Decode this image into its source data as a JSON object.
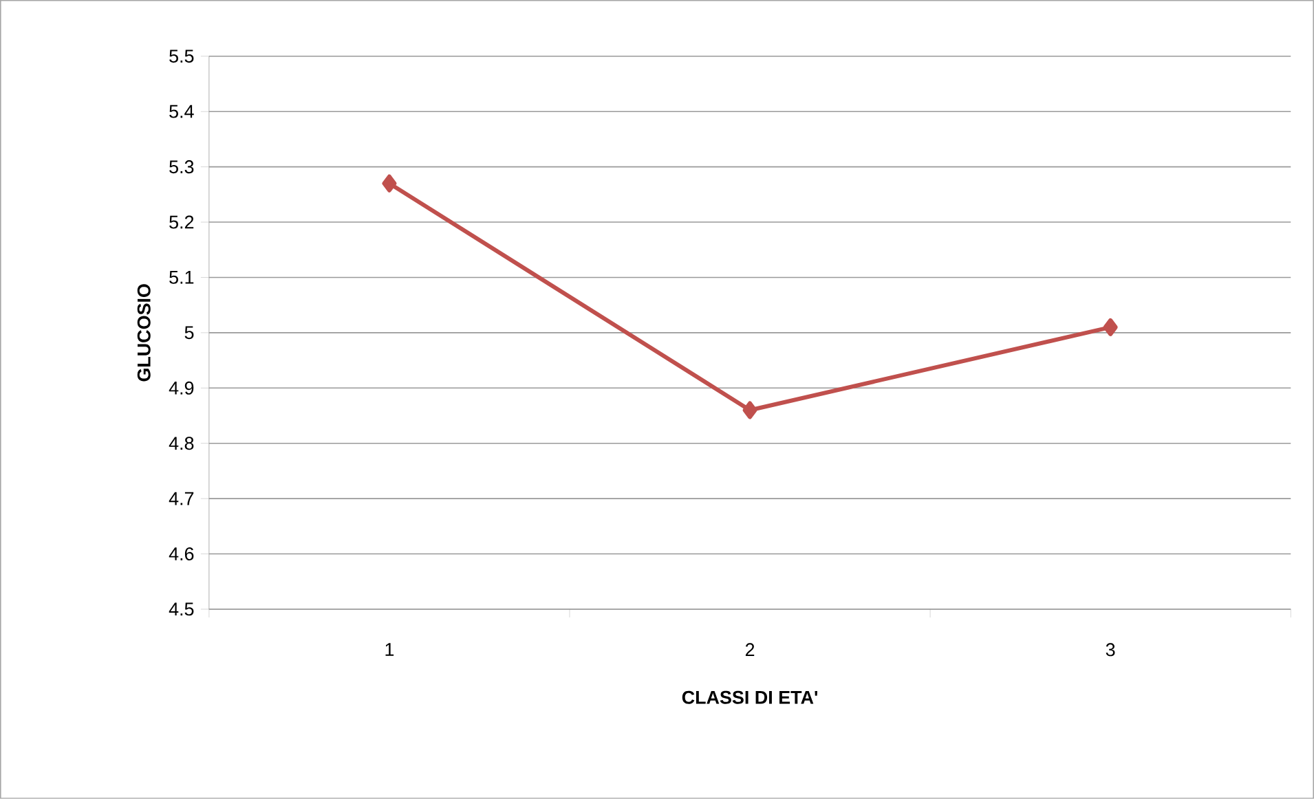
{
  "chart_data": {
    "type": "line",
    "xlabel": "CLASSI DI ETA'",
    "ylabel": "GLUCOSIO",
    "categories": [
      "1",
      "2",
      "3"
    ],
    "series": [
      {
        "color": "#c0504d",
        "values": [
          5.27,
          4.86,
          5.01
        ]
      }
    ],
    "ylim": [
      4.5,
      5.5
    ],
    "yticks": [
      4.5,
      4.6,
      4.7,
      4.8,
      4.9,
      5,
      5.1,
      5.2,
      5.3,
      5.4,
      5.5
    ],
    "grid": "y",
    "marker": "diamond",
    "line_style": "solid"
  }
}
